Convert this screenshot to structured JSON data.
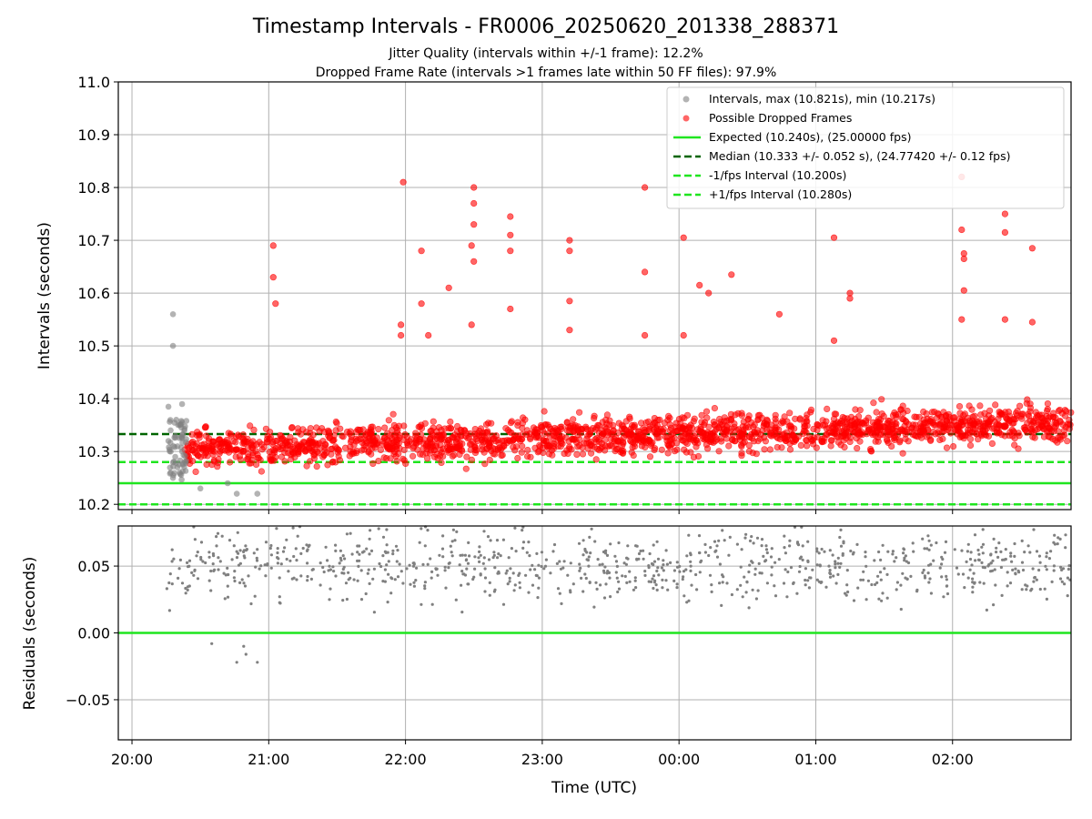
{
  "figure": {
    "title": "Timestamp Intervals - FR0006_20250620_201338_288371",
    "subtitle_1": "Jitter Quality (intervals within +/-1 frame): 12.2%",
    "subtitle_2": "Dropped Frame Rate (intervals >1 frames late within 50 FF files): 97.9%",
    "colors": {
      "interval_points": "#808080",
      "dropped_points": "#ff0000",
      "expected_line": "#1fe51f",
      "median_line": "#006400",
      "fps_interval_lines": "#1fe51f",
      "residual_points": "#808080",
      "grid": "#b0b0b0"
    }
  },
  "chart_data": [
    {
      "type": "scatter",
      "panel": "top",
      "xlabel": "",
      "ylabel": "Intervals (seconds)",
      "ylim": [
        10.19,
        11.0
      ],
      "y_ticks": [
        "10.2",
        "10.3",
        "10.4",
        "10.5",
        "10.6",
        "10.7",
        "10.8",
        "10.9",
        "11.0"
      ],
      "grid": true,
      "legend_position": "top-right",
      "legend": [
        "Intervals, max (10.821s), min (10.217s)",
        "Possible Dropped Frames",
        "Expected (10.240s), (25.00000 fps)",
        "Median (10.333 +/- 0.052 s), (24.77420 +/- 0.12 fps)",
        "-1/fps Interval (10.200s)",
        "+1/fps Interval (10.280s)"
      ],
      "series": [
        {
          "name": "Intervals, max (10.821s), min (10.217s)",
          "marker": "circle",
          "points": [
            [
              "20:16",
              10.385
            ],
            [
              "20:16",
              10.32
            ],
            [
              "20:17",
              10.26
            ],
            [
              "20:17",
              10.3
            ],
            [
              "20:18",
              10.56
            ],
            [
              "20:18",
              10.5
            ],
            [
              "20:18",
              10.25
            ],
            [
              "20:19",
              10.29
            ],
            [
              "20:19",
              10.33
            ],
            [
              "20:20",
              10.31
            ],
            [
              "20:20",
              10.27
            ],
            [
              "20:21",
              10.35
            ],
            [
              "20:21",
              10.26
            ],
            [
              "20:22",
              10.39
            ],
            [
              "20:22",
              10.3
            ],
            [
              "20:23",
              10.34
            ],
            [
              "20:30",
              10.23
            ],
            [
              "20:42",
              10.24
            ],
            [
              "20:46",
              10.22
            ],
            [
              "20:55",
              10.22
            ]
          ]
        },
        {
          "name": "Possible Dropped Frames",
          "marker": "circle",
          "points": [
            [
              "21:02",
              10.69
            ],
            [
              "21:02",
              10.63
            ],
            [
              "21:03",
              10.58
            ],
            [
              "21:59",
              10.81
            ],
            [
              "21:58",
              10.54
            ],
            [
              "21:58",
              10.52
            ],
            [
              "22:07",
              10.68
            ],
            [
              "22:07",
              10.58
            ],
            [
              "22:10",
              10.52
            ],
            [
              "22:19",
              10.61
            ],
            [
              "22:30",
              10.8
            ],
            [
              "22:30",
              10.77
            ],
            [
              "22:30",
              10.73
            ],
            [
              "22:29",
              10.69
            ],
            [
              "22:30",
              10.66
            ],
            [
              "22:29",
              10.54
            ],
            [
              "22:46",
              10.745
            ],
            [
              "22:46",
              10.71
            ],
            [
              "22:46",
              10.68
            ],
            [
              "22:46",
              10.57
            ],
            [
              "23:12",
              10.7
            ],
            [
              "23:12",
              10.68
            ],
            [
              "23:12",
              10.585
            ],
            [
              "23:12",
              10.53
            ],
            [
              "23:45",
              10.8
            ],
            [
              "23:45",
              10.64
            ],
            [
              "23:45",
              10.52
            ],
            [
              "00:02",
              10.705
            ],
            [
              "00:02",
              10.52
            ],
            [
              "00:09",
              10.615
            ],
            [
              "00:13",
              10.6
            ],
            [
              "00:23",
              10.635
            ],
            [
              "00:44",
              10.56
            ],
            [
              "01:08",
              10.705
            ],
            [
              "01:08",
              10.51
            ],
            [
              "01:15",
              10.6
            ],
            [
              "01:15",
              10.59
            ],
            [
              "02:04",
              10.72
            ],
            [
              "02:05",
              10.675
            ],
            [
              "02:05",
              10.665
            ],
            [
              "02:05",
              10.605
            ],
            [
              "02:04",
              10.55
            ],
            [
              "02:04",
              10.82
            ],
            [
              "02:23",
              10.75
            ],
            [
              "02:23",
              10.715
            ],
            [
              "02:23",
              10.55
            ],
            [
              "02:35",
              10.685
            ],
            [
              "02:35",
              10.545
            ]
          ],
          "bulk_band": {
            "x_range": [
              "20:23",
              "02:52"
            ],
            "y_range": [
              10.245,
              10.45
            ]
          }
        },
        {
          "name": "Expected (10.240s), (25.00000 fps)",
          "line": "solid",
          "y": 10.24
        },
        {
          "name": "Median (10.333 +/- 0.052 s), (24.77420 +/- 0.12 fps)",
          "line": "dashed",
          "y": 10.333
        },
        {
          "name": "-1/fps Interval (10.200s)",
          "line": "dashed",
          "y": 10.2
        },
        {
          "name": "+1/fps Interval (10.280s)",
          "line": "dashed",
          "y": 10.28
        }
      ]
    },
    {
      "type": "scatter",
      "panel": "bottom",
      "xlabel": "Time (UTC)",
      "ylabel": "Residuals (seconds)",
      "ylim": [
        -0.08,
        0.08
      ],
      "y_ticks": [
        "−0.05",
        "0.00",
        "0.05"
      ],
      "x_ticks": [
        "20:00",
        "21:00",
        "22:00",
        "23:00",
        "00:00",
        "01:00",
        "02:00"
      ],
      "xlim": [
        "19:54",
        "02:52"
      ],
      "grid": true,
      "series": [
        {
          "name": "",
          "marker": "dot",
          "points_range": {
            "x_range": [
              "20:15",
              "02:52"
            ],
            "y_range": [
              -0.025,
              0.08
            ]
          },
          "lowest_points": [
            [
              "20:35",
              -0.008
            ],
            [
              "20:46",
              -0.022
            ],
            [
              "20:50",
              -0.016
            ],
            [
              "20:55",
              -0.022
            ],
            [
              "20:49",
              -0.01
            ]
          ]
        },
        {
          "name": "",
          "line": "solid",
          "y": 0.0
        }
      ]
    }
  ]
}
